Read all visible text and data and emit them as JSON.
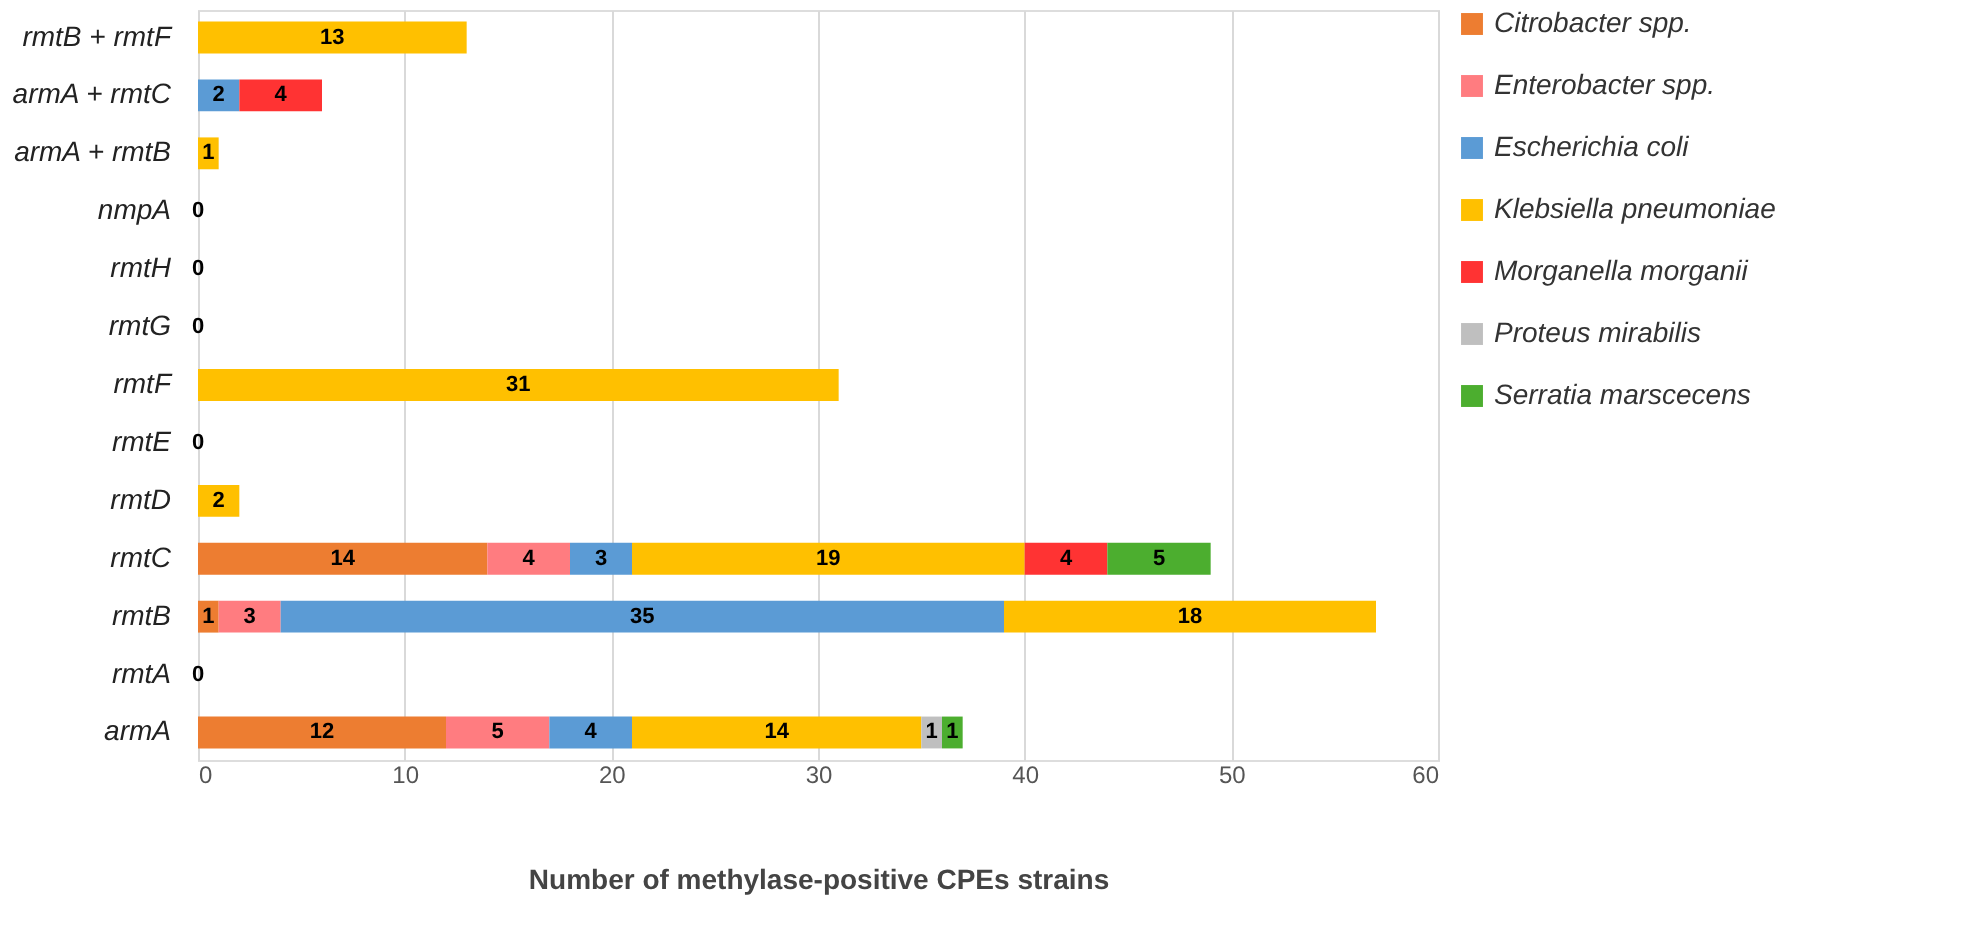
{
  "chart_data": {
    "type": "bar",
    "orientation": "horizontal",
    "stacked": true,
    "categories": [
      "rmtB + rmtF",
      "armA + rmtC",
      "armA + rmtB",
      "nmpA",
      "rmtH",
      "rmtG",
      "rmtF",
      "rmtE",
      "rmtD",
      "rmtC",
      "rmtB",
      "rmtA",
      "armA"
    ],
    "series": [
      {
        "name": "Citrobacter spp.",
        "color": "#ed7d31",
        "values": [
          0,
          0,
          0,
          0,
          0,
          0,
          0,
          0,
          0,
          14,
          1,
          0,
          12
        ],
        "value_labels": [
          null,
          null,
          null,
          null,
          null,
          null,
          null,
          null,
          null,
          "14",
          "1",
          null,
          "12"
        ]
      },
      {
        "name": "Enterobacter spp.",
        "color": "#ff7c80",
        "values": [
          0,
          0,
          0,
          0,
          0,
          0,
          0,
          0,
          0,
          4,
          3,
          0,
          5
        ],
        "value_labels": [
          null,
          null,
          null,
          null,
          null,
          null,
          null,
          null,
          null,
          "4",
          "3",
          null,
          "5"
        ]
      },
      {
        "name": "Escherichia coli",
        "color": "#5b9bd5",
        "values": [
          0,
          2,
          0,
          0,
          0,
          0,
          0,
          0,
          0,
          3,
          35,
          0,
          4
        ],
        "value_labels": [
          null,
          "2",
          null,
          null,
          null,
          null,
          null,
          null,
          null,
          "3",
          "35",
          null,
          "4"
        ]
      },
      {
        "name": "Klebsiella pneumoniae",
        "color": "#ffc000",
        "values": [
          13,
          0,
          1,
          0,
          0,
          0,
          31,
          0,
          2,
          19,
          18,
          0,
          14
        ],
        "value_labels": [
          "13",
          null,
          "1",
          "0",
          "0",
          "0",
          "31",
          "0",
          "2",
          "19",
          "18",
          "0",
          "14"
        ]
      },
      {
        "name": "Morganella morganii",
        "color": "#ff3333",
        "values": [
          0,
          4,
          0,
          0,
          0,
          0,
          0,
          0,
          0,
          4,
          0,
          0,
          0
        ],
        "value_labels": [
          null,
          "4",
          null,
          null,
          null,
          null,
          null,
          null,
          null,
          "4",
          null,
          null,
          null
        ]
      },
      {
        "name": "Proteus mirabilis",
        "color": "#bfbfbf",
        "values": [
          0,
          0,
          0,
          0,
          0,
          0,
          0,
          0,
          0,
          0,
          0,
          0,
          1
        ],
        "value_labels": [
          null,
          null,
          null,
          null,
          null,
          null,
          null,
          null,
          null,
          null,
          null,
          null,
          "1"
        ]
      },
      {
        "name": "Serratia marscecens",
        "color": "#4cae2f",
        "values": [
          0,
          0,
          0,
          0,
          0,
          0,
          0,
          0,
          0,
          5,
          0,
          0,
          1
        ],
        "value_labels": [
          null,
          null,
          null,
          null,
          null,
          null,
          null,
          null,
          null,
          "5",
          null,
          null,
          "1"
        ]
      }
    ],
    "xlim": [
      0,
      60
    ],
    "xticks": [
      0,
      10,
      20,
      30,
      40,
      50,
      60
    ],
    "xlabel": "Number of methylase-positive CPEs strains",
    "grid": "x",
    "legend": "right"
  }
}
